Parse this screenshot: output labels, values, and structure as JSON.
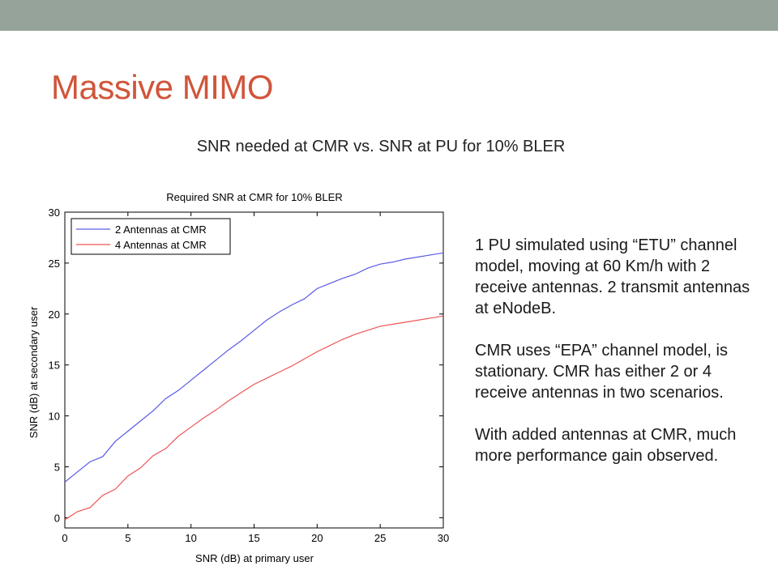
{
  "slide": {
    "title": "Massive MIMO",
    "subtitle": "SNR needed at CMR vs. SNR at PU for 10% BLER",
    "notes": [
      "1 PU simulated using “ETU” channel model, moving at 60 Km/h with 2 receive antennas. 2 transmit antennas at eNodeB.",
      "CMR uses “EPA” channel model, is stationary. CMR has either 2 or 4 receive antennas in two scenarios.",
      "With added antennas at CMR, much more performance gain observed."
    ]
  },
  "colors": {
    "top_bar": "#95a39a",
    "title": "#d0553a"
  },
  "chart_data": {
    "type": "line",
    "title": "Required SNR at CMR for 10% BLER",
    "xlabel": "SNR (dB) at primary user",
    "ylabel": "SNR (dB) at secondary user",
    "xlim": [
      0,
      30
    ],
    "ylim": [
      -1,
      30
    ],
    "xticks": [
      0,
      5,
      10,
      15,
      20,
      25,
      30
    ],
    "yticks": [
      0,
      5,
      10,
      15,
      20,
      25,
      30
    ],
    "grid": false,
    "legend_position": "top-left",
    "x": [
      0,
      1,
      2,
      3,
      4,
      5,
      6,
      7,
      8,
      9,
      10,
      11,
      12,
      13,
      14,
      15,
      16,
      17,
      18,
      19,
      20,
      21,
      22,
      23,
      24,
      25,
      26,
      27,
      28,
      29,
      30
    ],
    "series": [
      {
        "name": "2 Antennas at CMR",
        "color": "#5a5ae6",
        "values": [
          3.5,
          4.5,
          5.5,
          6.0,
          7.5,
          8.5,
          9.5,
          10.5,
          11.7,
          12.5,
          13.5,
          14.5,
          15.5,
          16.5,
          17.4,
          18.4,
          19.4,
          20.2,
          20.9,
          21.5,
          22.5,
          23.0,
          23.5,
          23.9,
          24.5,
          24.9,
          25.1,
          25.4,
          25.6,
          25.8,
          26.0
        ]
      },
      {
        "name": "4 Antennas at CMR",
        "color": "#ee5555",
        "values": [
          -0.2,
          0.6,
          1.0,
          2.2,
          2.8,
          4.1,
          4.9,
          6.1,
          6.8,
          8.0,
          8.9,
          9.8,
          10.6,
          11.5,
          12.3,
          13.1,
          13.7,
          14.3,
          14.9,
          15.6,
          16.3,
          16.9,
          17.5,
          18.0,
          18.4,
          18.8,
          19.0,
          19.2,
          19.4,
          19.6,
          19.8
        ]
      }
    ]
  }
}
